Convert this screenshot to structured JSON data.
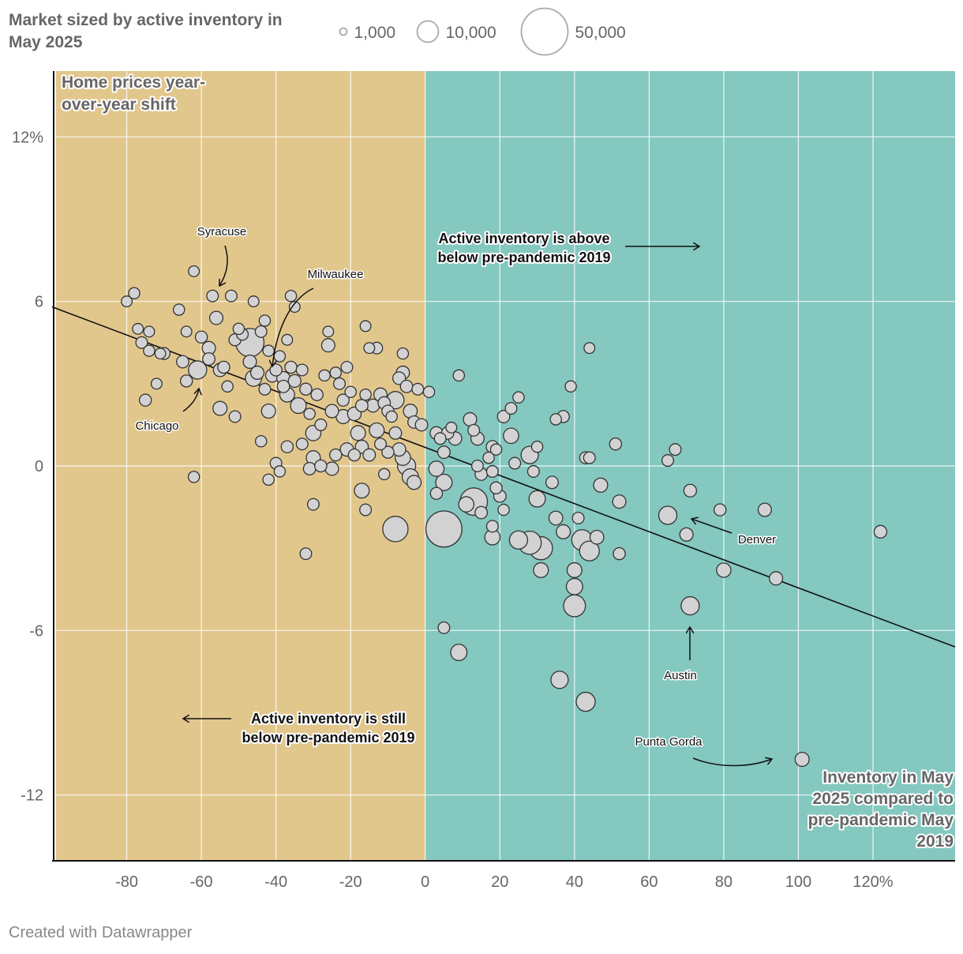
{
  "legend": {
    "title": "Market sized by active inventory in May 2025",
    "sizes": [
      {
        "value": 1000,
        "label": "1,000"
      },
      {
        "value": 10000,
        "label": "10,000"
      },
      {
        "value": 50000,
        "label": "50,000"
      }
    ]
  },
  "credit": "Created with Datawrapper",
  "colors": {
    "below_region": "#e2c78d",
    "above_region": "#84c8c0",
    "bubble_fill": "#d2d2d2",
    "bubble_stroke": "#333333",
    "text": "#666666"
  },
  "chart_data": {
    "type": "scatter",
    "xlabel": "Inventory in May 2025 compared to pre-pandemic May 2019",
    "ylabel": "Home prices year-over-year shift",
    "xlim": [
      -100,
      142
    ],
    "ylim": [
      -14.4,
      14.4
    ],
    "x_ticks": [
      {
        "value": -80,
        "label": "-80"
      },
      {
        "value": -60,
        "label": "-60"
      },
      {
        "value": -40,
        "label": "-40"
      },
      {
        "value": -20,
        "label": "-20"
      },
      {
        "value": 0,
        "label": "0"
      },
      {
        "value": 20,
        "label": "20"
      },
      {
        "value": 40,
        "label": "40"
      },
      {
        "value": 60,
        "label": "60"
      },
      {
        "value": 80,
        "label": "80"
      },
      {
        "value": 100,
        "label": "100"
      },
      {
        "value": 120,
        "label": "120%"
      }
    ],
    "y_ticks": [
      {
        "value": 12,
        "label": "12%"
      },
      {
        "value": 6,
        "label": "6"
      },
      {
        "value": 0,
        "label": "0"
      },
      {
        "value": -6,
        "label": "-6"
      },
      {
        "value": -12,
        "label": "-12"
      }
    ],
    "grid": true,
    "regions": [
      {
        "x0": -99,
        "x1": 0,
        "color": "#e2c78d"
      },
      {
        "x0": 0,
        "x1": 142,
        "color": "#84c8c0"
      }
    ],
    "trendline": {
      "x": [
        -100,
        142
      ],
      "y": [
        5.8,
        -6.6
      ]
    },
    "points": [
      {
        "x": -80,
        "y": 6.0,
        "size": 500
      },
      {
        "x": -78,
        "y": 6.3,
        "size": 600
      },
      {
        "x": -77,
        "y": 5.0,
        "size": 500
      },
      {
        "x": -76,
        "y": 4.5,
        "size": 700
      },
      {
        "x": -74,
        "y": 4.9,
        "size": 500
      },
      {
        "x": -74,
        "y": 4.2,
        "size": 600
      },
      {
        "x": -71,
        "y": 4.1,
        "size": 500
      },
      {
        "x": -70,
        "y": 4.1,
        "size": 800
      },
      {
        "x": -75,
        "y": 2.4,
        "size": 800
      },
      {
        "x": -72,
        "y": 3.0,
        "size": 500
      },
      {
        "x": -65,
        "y": 3.8,
        "size": 900
      },
      {
        "x": -64,
        "y": 3.1,
        "size": 800
      },
      {
        "x": -66,
        "y": 5.7,
        "size": 600
      },
      {
        "x": -64,
        "y": 4.9,
        "size": 500
      },
      {
        "x": -62,
        "y": 7.1,
        "size": 500
      },
      {
        "x": -61,
        "y": 3.5,
        "size": 3500
      },
      {
        "x": -60,
        "y": 4.7,
        "size": 800
      },
      {
        "x": -58,
        "y": 4.3,
        "size": 1200
      },
      {
        "x": -58,
        "y": 3.9,
        "size": 900
      },
      {
        "x": -57,
        "y": 6.2,
        "size": 700
      },
      {
        "x": -56,
        "y": 5.4,
        "size": 1200
      },
      {
        "x": -55,
        "y": 3.5,
        "size": 1200
      },
      {
        "x": -54,
        "y": 3.6,
        "size": 800
      },
      {
        "x": -53,
        "y": 2.9,
        "size": 600
      },
      {
        "x": -52,
        "y": 6.2,
        "size": 700
      },
      {
        "x": -51,
        "y": 4.6,
        "size": 800
      },
      {
        "x": -50,
        "y": 5.0,
        "size": 600
      },
      {
        "x": -49,
        "y": 4.8,
        "size": 700
      },
      {
        "x": -47,
        "y": 4.5,
        "size": 12000
      },
      {
        "x": -46,
        "y": 6.0,
        "size": 500
      },
      {
        "x": -47,
        "y": 3.8,
        "size": 1200
      },
      {
        "x": -46,
        "y": 3.2,
        "size": 2500
      },
      {
        "x": -45,
        "y": 3.4,
        "size": 1200
      },
      {
        "x": -44,
        "y": 4.9,
        "size": 700
      },
      {
        "x": -43,
        "y": 5.3,
        "size": 600
      },
      {
        "x": -42,
        "y": 4.2,
        "size": 600
      },
      {
        "x": -43,
        "y": 2.8,
        "size": 700
      },
      {
        "x": -41,
        "y": 3.3,
        "size": 1200
      },
      {
        "x": -40,
        "y": 3.5,
        "size": 800
      },
      {
        "x": -39,
        "y": 4.0,
        "size": 600
      },
      {
        "x": -38,
        "y": 3.2,
        "size": 1200
      },
      {
        "x": -37,
        "y": 4.6,
        "size": 500
      },
      {
        "x": -36,
        "y": 6.2,
        "size": 600
      },
      {
        "x": -35,
        "y": 5.8,
        "size": 500
      },
      {
        "x": -36,
        "y": 3.6,
        "size": 800
      },
      {
        "x": -35,
        "y": 3.1,
        "size": 1000
      },
      {
        "x": -38,
        "y": 2.9,
        "size": 900
      },
      {
        "x": -37,
        "y": 2.6,
        "size": 1800
      },
      {
        "x": -34,
        "y": 2.2,
        "size": 2200
      },
      {
        "x": -42,
        "y": 2.0,
        "size": 1500
      },
      {
        "x": -55,
        "y": 2.1,
        "size": 1500
      },
      {
        "x": -51,
        "y": 1.8,
        "size": 700
      },
      {
        "x": -33,
        "y": 3.5,
        "size": 700
      },
      {
        "x": -32,
        "y": 2.8,
        "size": 800
      },
      {
        "x": -31,
        "y": 1.9,
        "size": 600
      },
      {
        "x": -30,
        "y": 1.2,
        "size": 2000
      },
      {
        "x": -29,
        "y": 2.6,
        "size": 800
      },
      {
        "x": -28,
        "y": 1.5,
        "size": 700
      },
      {
        "x": -27,
        "y": 3.3,
        "size": 600
      },
      {
        "x": -26,
        "y": 4.9,
        "size": 500
      },
      {
        "x": -26,
        "y": 4.4,
        "size": 1200
      },
      {
        "x": -25,
        "y": 2.0,
        "size": 1200
      },
      {
        "x": -24,
        "y": 3.4,
        "size": 600
      },
      {
        "x": -23,
        "y": 3.0,
        "size": 700
      },
      {
        "x": -22,
        "y": 2.4,
        "size": 800
      },
      {
        "x": -22,
        "y": 1.8,
        "size": 1500
      },
      {
        "x": -21,
        "y": 3.6,
        "size": 700
      },
      {
        "x": -20,
        "y": 2.7,
        "size": 600
      },
      {
        "x": -19,
        "y": 1.9,
        "size": 1300
      },
      {
        "x": -18,
        "y": 1.2,
        "size": 1800
      },
      {
        "x": -17,
        "y": 2.2,
        "size": 900
      },
      {
        "x": -16,
        "y": 2.6,
        "size": 600
      },
      {
        "x": -16,
        "y": 5.1,
        "size": 500
      },
      {
        "x": -15,
        "y": 4.3,
        "size": 500
      },
      {
        "x": -13,
        "y": 4.3,
        "size": 700
      },
      {
        "x": -14,
        "y": 2.2,
        "size": 1100
      },
      {
        "x": -13,
        "y": 1.3,
        "size": 1800
      },
      {
        "x": -12,
        "y": 2.6,
        "size": 1200
      },
      {
        "x": -11,
        "y": 2.3,
        "size": 900
      },
      {
        "x": -10,
        "y": 2.0,
        "size": 800
      },
      {
        "x": -9,
        "y": 1.8,
        "size": 600
      },
      {
        "x": -8,
        "y": 2.4,
        "size": 3000
      },
      {
        "x": -7,
        "y": 3.2,
        "size": 1000
      },
      {
        "x": -6,
        "y": 3.4,
        "size": 1200
      },
      {
        "x": -5,
        "y": 2.9,
        "size": 900
      },
      {
        "x": -4,
        "y": 2.0,
        "size": 1400
      },
      {
        "x": -3,
        "y": 1.6,
        "size": 900
      },
      {
        "x": -6,
        "y": 4.1,
        "size": 600
      },
      {
        "x": -2,
        "y": 2.8,
        "size": 700
      },
      {
        "x": -8,
        "y": 1.2,
        "size": 900
      },
      {
        "x": -7,
        "y": 0.6,
        "size": 1200
      },
      {
        "x": -6,
        "y": 0.3,
        "size": 2000
      },
      {
        "x": -5,
        "y": 0.0,
        "size": 3500
      },
      {
        "x": -4,
        "y": -0.4,
        "size": 2500
      },
      {
        "x": -3,
        "y": -0.6,
        "size": 1500
      },
      {
        "x": -10,
        "y": 0.5,
        "size": 800
      },
      {
        "x": -11,
        "y": -0.3,
        "size": 600
      },
      {
        "x": -12,
        "y": 0.8,
        "size": 700
      },
      {
        "x": -15,
        "y": 0.4,
        "size": 900
      },
      {
        "x": -17,
        "y": 0.7,
        "size": 1100
      },
      {
        "x": -19,
        "y": 0.4,
        "size": 800
      },
      {
        "x": -21,
        "y": 0.6,
        "size": 1200
      },
      {
        "x": -24,
        "y": 0.4,
        "size": 800
      },
      {
        "x": -25,
        "y": -0.1,
        "size": 1200
      },
      {
        "x": -28,
        "y": 0.0,
        "size": 800
      },
      {
        "x": -30,
        "y": 0.3,
        "size": 1500
      },
      {
        "x": -31,
        "y": -0.1,
        "size": 900
      },
      {
        "x": -33,
        "y": 0.8,
        "size": 700
      },
      {
        "x": -37,
        "y": 0.7,
        "size": 800
      },
      {
        "x": -39,
        "y": -0.2,
        "size": 600
      },
      {
        "x": -40,
        "y": 0.1,
        "size": 700
      },
      {
        "x": -42,
        "y": -0.5,
        "size": 600
      },
      {
        "x": -44,
        "y": 0.9,
        "size": 600
      },
      {
        "x": -62,
        "y": -0.4,
        "size": 600
      },
      {
        "x": -30,
        "y": -1.4,
        "size": 700
      },
      {
        "x": -17,
        "y": -0.9,
        "size": 1800
      },
      {
        "x": -16,
        "y": -1.6,
        "size": 700
      },
      {
        "x": -32,
        "y": -3.2,
        "size": 700
      },
      {
        "x": -8,
        "y": -2.3,
        "size": 9000
      },
      {
        "x": -1,
        "y": 1.5,
        "size": 900
      },
      {
        "x": 1,
        "y": 2.7,
        "size": 600
      },
      {
        "x": 3,
        "y": 1.2,
        "size": 1000
      },
      {
        "x": 4,
        "y": 1.0,
        "size": 700
      },
      {
        "x": 5,
        "y": 0.5,
        "size": 900
      },
      {
        "x": 3,
        "y": -0.1,
        "size": 2000
      },
      {
        "x": 5,
        "y": -0.6,
        "size": 2500
      },
      {
        "x": 3,
        "y": -1.0,
        "size": 800
      },
      {
        "x": 6,
        "y": 1.2,
        "size": 900
      },
      {
        "x": 7,
        "y": 1.4,
        "size": 500
      },
      {
        "x": 8,
        "y": 1.0,
        "size": 1200
      },
      {
        "x": 9,
        "y": 3.3,
        "size": 600
      },
      {
        "x": 12,
        "y": 1.7,
        "size": 1200
      },
      {
        "x": 13,
        "y": 1.3,
        "size": 700
      },
      {
        "x": 14,
        "y": 1.0,
        "size": 1200
      },
      {
        "x": 14,
        "y": 0.0,
        "size": 700
      },
      {
        "x": 15,
        "y": -0.3,
        "size": 900
      },
      {
        "x": 17,
        "y": 0.3,
        "size": 600
      },
      {
        "x": 18,
        "y": 0.7,
        "size": 900
      },
      {
        "x": 19,
        "y": 0.6,
        "size": 600
      },
      {
        "x": 18,
        "y": -0.2,
        "size": 700
      },
      {
        "x": 19,
        "y": -0.8,
        "size": 800
      },
      {
        "x": 20,
        "y": -1.1,
        "size": 900
      },
      {
        "x": 21,
        "y": -1.6,
        "size": 600
      },
      {
        "x": 21,
        "y": 1.8,
        "size": 900
      },
      {
        "x": 23,
        "y": 2.1,
        "size": 700
      },
      {
        "x": 23,
        "y": 1.1,
        "size": 2000
      },
      {
        "x": 24,
        "y": 0.1,
        "size": 700
      },
      {
        "x": 25,
        "y": 2.5,
        "size": 600
      },
      {
        "x": 28,
        "y": 0.4,
        "size": 3000
      },
      {
        "x": 29,
        "y": -0.2,
        "size": 700
      },
      {
        "x": 30,
        "y": 0.7,
        "size": 600
      },
      {
        "x": 30,
        "y": -1.2,
        "size": 2500
      },
      {
        "x": 34,
        "y": -0.6,
        "size": 900
      },
      {
        "x": 35,
        "y": 1.7,
        "size": 600
      },
      {
        "x": 37,
        "y": 1.8,
        "size": 800
      },
      {
        "x": 39,
        "y": 2.9,
        "size": 600
      },
      {
        "x": 43,
        "y": 0.3,
        "size": 800
      },
      {
        "x": 44,
        "y": 0.3,
        "size": 700
      },
      {
        "x": 44,
        "y": 4.3,
        "size": 500
      },
      {
        "x": 47,
        "y": -0.7,
        "size": 1500
      },
      {
        "x": 51,
        "y": 0.8,
        "size": 800
      },
      {
        "x": 52,
        "y": -1.3,
        "size": 1200
      },
      {
        "x": 52,
        "y": -3.2,
        "size": 800
      },
      {
        "x": 65,
        "y": 0.2,
        "size": 700
      },
      {
        "x": 67,
        "y": 0.6,
        "size": 700
      },
      {
        "x": 65,
        "y": -1.8,
        "size": 3500
      },
      {
        "x": 70,
        "y": -2.5,
        "size": 1200
      },
      {
        "x": 71,
        "y": -0.9,
        "size": 1000
      },
      {
        "x": 79,
        "y": -1.6,
        "size": 800
      },
      {
        "x": 80,
        "y": -3.8,
        "size": 1600
      },
      {
        "x": 91,
        "y": -1.6,
        "size": 1200
      },
      {
        "x": 94,
        "y": -4.1,
        "size": 1200
      },
      {
        "x": 122,
        "y": -2.4,
        "size": 1000
      },
      {
        "x": 71,
        "y": -5.1,
        "size": 3500
      },
      {
        "x": 101,
        "y": -10.7,
        "size": 1500
      },
      {
        "x": 9,
        "y": -6.8,
        "size": 2500
      },
      {
        "x": 5,
        "y": -5.9,
        "size": 700
      },
      {
        "x": 36,
        "y": -7.8,
        "size": 3000
      },
      {
        "x": 43,
        "y": -8.6,
        "size": 4000
      },
      {
        "x": 40,
        "y": -5.1,
        "size": 6000
      },
      {
        "x": 40,
        "y": -4.4,
        "size": 2500
      },
      {
        "x": 40,
        "y": -3.8,
        "size": 1800
      },
      {
        "x": 44,
        "y": -3.1,
        "size": 4500
      },
      {
        "x": 42,
        "y": -2.7,
        "size": 5000
      },
      {
        "x": 46,
        "y": -2.6,
        "size": 1400
      },
      {
        "x": 37,
        "y": -2.4,
        "size": 1500
      },
      {
        "x": 35,
        "y": -1.9,
        "size": 1400
      },
      {
        "x": 41,
        "y": -1.9,
        "size": 700
      },
      {
        "x": 31,
        "y": -3.8,
        "size": 1800
      },
      {
        "x": 31,
        "y": -3.0,
        "size": 7000
      },
      {
        "x": 28,
        "y": -2.8,
        "size": 7000
      },
      {
        "x": 25,
        "y": -2.7,
        "size": 3500
      },
      {
        "x": 18,
        "y": -2.6,
        "size": 2000
      },
      {
        "x": 18,
        "y": -2.2,
        "size": 700
      },
      {
        "x": 13,
        "y": -1.3,
        "size": 11000
      },
      {
        "x": 15,
        "y": -1.7,
        "size": 900
      },
      {
        "x": 11,
        "y": -1.4,
        "size": 2000
      },
      {
        "x": 5,
        "y": -2.3,
        "size": 22000
      }
    ],
    "annotations": [
      {
        "text": "Syracuse"
      },
      {
        "text": "Milwaukee"
      },
      {
        "text": "Chicago"
      },
      {
        "text": "Denver"
      },
      {
        "text": "Austin"
      },
      {
        "text": "Punta Gorda"
      },
      {
        "text": "Active inventory is above below pre-pandemic 2019"
      },
      {
        "text": "Active inventory is still below pre-pandemic 2019"
      }
    ]
  }
}
